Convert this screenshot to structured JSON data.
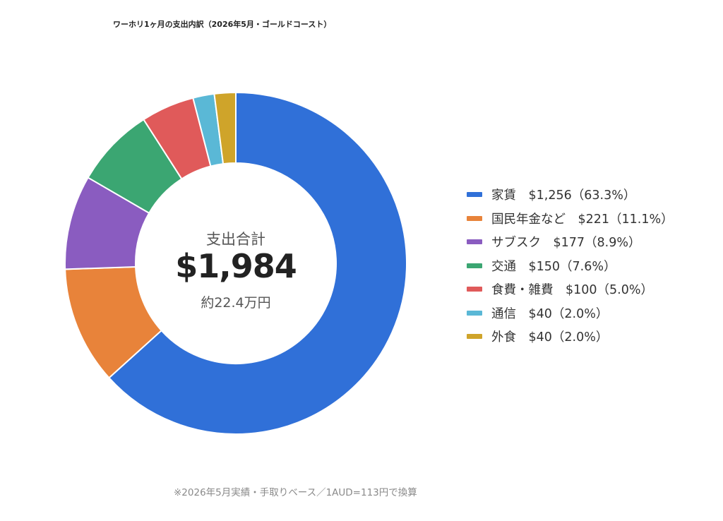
{
  "chart_data": {
    "type": "pie",
    "title": "ワーホリ1ヶ月の支出内訳（2026年5月・ゴールドコースト）",
    "center_label": "支出合計",
    "center_total": "$1,984",
    "center_sub": "約22.4万円",
    "footnote": "※2026年5月実績・手取りベース／1AUD=113円で換算",
    "legend_position": "right",
    "categories": [
      "家賃",
      "国民年金など",
      "サブスク",
      "交通",
      "食費・雑費",
      "通信",
      "外食"
    ],
    "values": [
      1256,
      221,
      177,
      150,
      100,
      40,
      40
    ],
    "legend_labels": [
      "家賃　$1,256（63.3%）",
      "国民年金など　$221（11.1%）",
      "サブスク　$177（8.9%）",
      "交通　$150（7.6%）",
      "食費・雑費　$100（5.0%）",
      "通信　$40（2.0%）",
      "外食　$40（2.0%）"
    ],
    "colors": [
      "#3070d8",
      "#e8833a",
      "#8a5cc0",
      "#3ba672",
      "#e05a5a",
      "#5ab8d6",
      "#cfa42a"
    ]
  }
}
